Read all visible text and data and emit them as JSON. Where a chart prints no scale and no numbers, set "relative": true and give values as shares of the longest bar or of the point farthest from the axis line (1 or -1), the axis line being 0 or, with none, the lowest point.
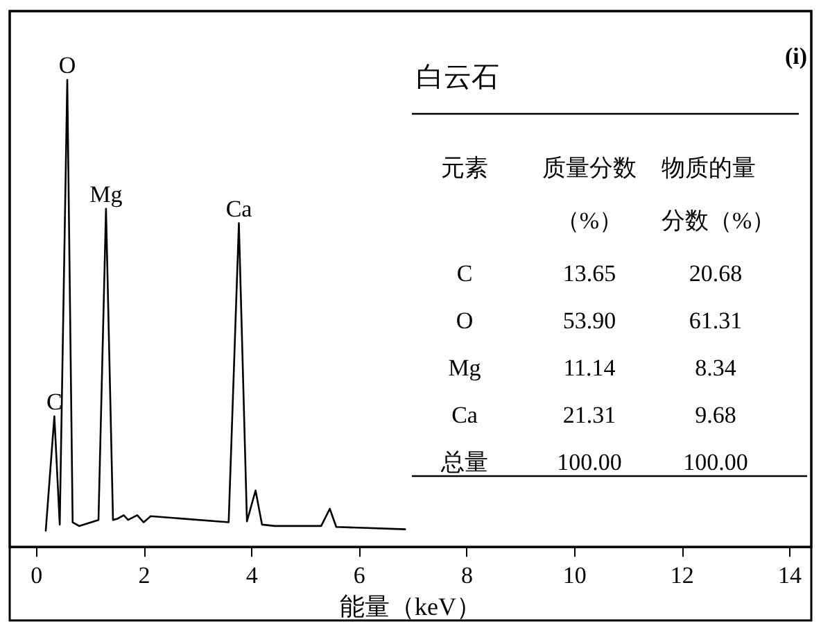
{
  "chart_data": {
    "type": "line",
    "title": "白云石",
    "xlabel": "能量（keV）",
    "relative": true,
    "xlim": [
      -0.5,
      14.4
    ],
    "xticks": [
      0,
      2,
      4,
      6,
      8,
      10,
      12,
      14
    ],
    "grid": false,
    "marker": "none",
    "line_style": "solid",
    "x": [
      0.17,
      0.33,
      0.43,
      0.57,
      0.67,
      0.79,
      1.15,
      1.29,
      1.42,
      1.51,
      1.62,
      1.7,
      1.87,
      1.99,
      2.12,
      3.57,
      3.76,
      3.91,
      4.07,
      4.19,
      4.43,
      5.29,
      5.45,
      5.57,
      6.85
    ],
    "series": [
      {
        "color": "#000000",
        "values": [
          0.035,
          0.28,
          0.048,
          1.0,
          0.053,
          0.045,
          0.058,
          0.724,
          0.058,
          0.061,
          0.068,
          0.058,
          0.068,
          0.053,
          0.066,
          0.053,
          0.693,
          0.055,
          0.121,
          0.048,
          0.045,
          0.045,
          0.082,
          0.043,
          0.038
        ]
      }
    ],
    "annotations": [
      {
        "text": "C",
        "x": 0.33,
        "y": 0.28
      },
      {
        "text": "O",
        "x": 0.57,
        "y": 1.0
      },
      {
        "text": "Mg",
        "x": 1.29,
        "y": 0.724
      },
      {
        "text": "Ca",
        "x": 3.76,
        "y": 0.693
      },
      "(i)",
      "元素",
      "质量分数（%）",
      "物质的量分数（%）",
      "C",
      "13.65",
      "20.68",
      "O",
      "53.90",
      "61.31",
      "Mg",
      "11.14",
      "8.34",
      "Ca",
      "21.31",
      "9.68",
      "总量",
      "100.00",
      "100.00"
    ]
  }
}
